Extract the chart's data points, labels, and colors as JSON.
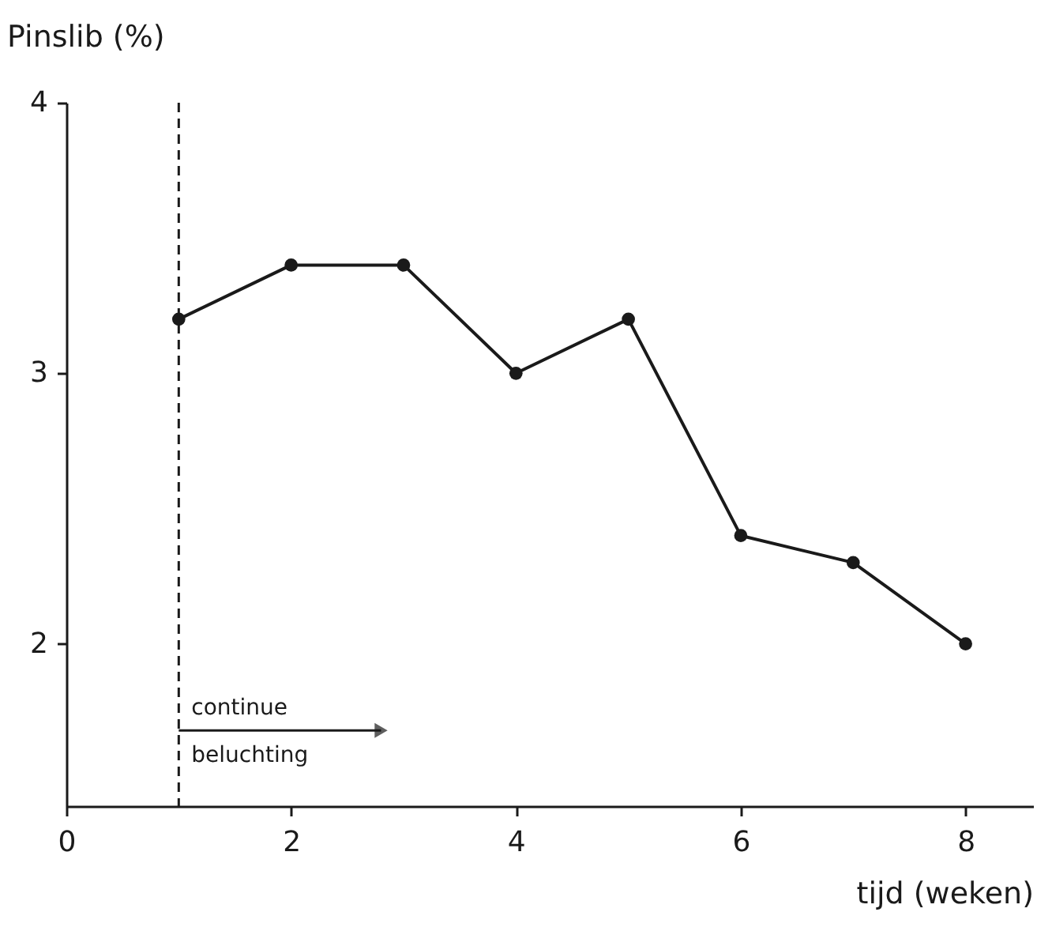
{
  "chart_data": {
    "type": "line",
    "ylabel": "Pinslib (%)",
    "xlabel": "tijd (weken)",
    "x": [
      1,
      2,
      3,
      4,
      5,
      6,
      7,
      8
    ],
    "series": [
      {
        "color": "#1a1a1a",
        "values": [
          3.2,
          3.4,
          3.4,
          3.0,
          3.2,
          2.4,
          2.3,
          2.0
        ]
      }
    ],
    "xlim": [
      0,
      8.6
    ],
    "xticks": [
      0,
      2,
      4,
      6,
      8
    ],
    "ylim": [
      1.4,
      4
    ],
    "yticks": [
      2,
      3,
      4
    ],
    "grid": false,
    "marker": "circle",
    "line_style": "solid",
    "ref_lines": [
      {
        "axis": "x",
        "value": 1,
        "line_style": "dashed",
        "color": "#1a1a1a"
      }
    ],
    "annotations": [
      {
        "text": "continue beluchting",
        "x": 1,
        "y": 1.68
      }
    ]
  }
}
